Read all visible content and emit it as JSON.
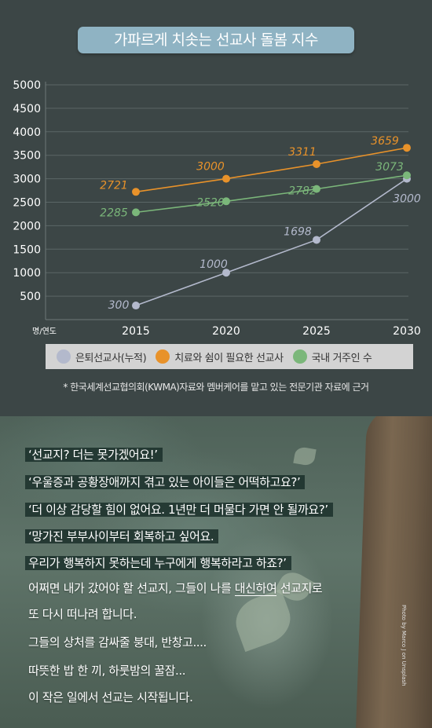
{
  "title": "가파르게 치솟는 선교사 돌봄 지수",
  "chart_data": {
    "type": "line",
    "x": [
      2015,
      2020,
      2025,
      2030
    ],
    "xlabel": "명/연도",
    "ylabel": "",
    "ylim": [
      0,
      5000
    ],
    "yticks": [
      500,
      1000,
      1500,
      2000,
      2500,
      3000,
      3500,
      4000,
      4500,
      5000
    ],
    "grid": true,
    "legend_position": "bottom",
    "series": [
      {
        "name": "은퇴선교사(누적)",
        "color": "#b3b9cc",
        "values": [
          300,
          1000,
          1698,
          3000
        ],
        "labels": [
          "300",
          "1000",
          "1698",
          "3000"
        ]
      },
      {
        "name": "치료와 쉼이 필요한 선교사",
        "color": "#e8922a",
        "values": [
          2721,
          3000,
          3311,
          3659
        ],
        "labels": [
          "2721",
          "3000",
          "3311",
          "3659"
        ]
      },
      {
        "name": "국내 거주인 수",
        "color": "#7bb77a",
        "values": [
          2285,
          2520,
          2782,
          3073
        ],
        "labels": [
          "2285",
          "2520",
          "2782",
          "3073"
        ]
      }
    ]
  },
  "legend": {
    "retired": "은퇴선교사(누적)",
    "therapy": "치료와 쉼이 필요한 선교사",
    "domestic": "국내 거주인 수"
  },
  "source_note": "* 한국세계선교협의회(KWMA)자료와 멤버케어를 맡고 있는 전문기관 자료에 근거",
  "quotes": [
    "‘선교지? 더는 못가겠어요!’",
    "‘우울증과 공황장애까지 겪고 있는 아이들은 어떡하고요?’",
    "‘더 이상 감당할 힘이 없어요. 1년만 더 머물다 가면 안 될까요?’",
    "‘망가진 부부사이부터 회복하고 싶어요.",
    "우리가 행복하지 못하는데 누구에게 행복하라고 하죠?’"
  ],
  "body": {
    "line1_pre": "어쩌면 내가 갔어야 할 선교지, 그들이 나를 ",
    "line1_ul": "대신하여",
    "line1_post": " 선교지로",
    "line2": "또 다시 떠나려 합니다.",
    "line3": "그들의 상처를 감싸줄 붕대, 반창고....",
    "line4": "따뜻한 밥 한 끼, 하룻밤의 꿀잠...",
    "line5": "이 작은 일에서 선교는 시작됩니다."
  },
  "photo_credit": "Photo by Marco J on Unsplash",
  "colors": {
    "background": "#3c4646",
    "title_pill": "#8fb3c3",
    "retired": "#b3b9cc",
    "therapy": "#e8922a",
    "domestic": "#7bb77a"
  }
}
